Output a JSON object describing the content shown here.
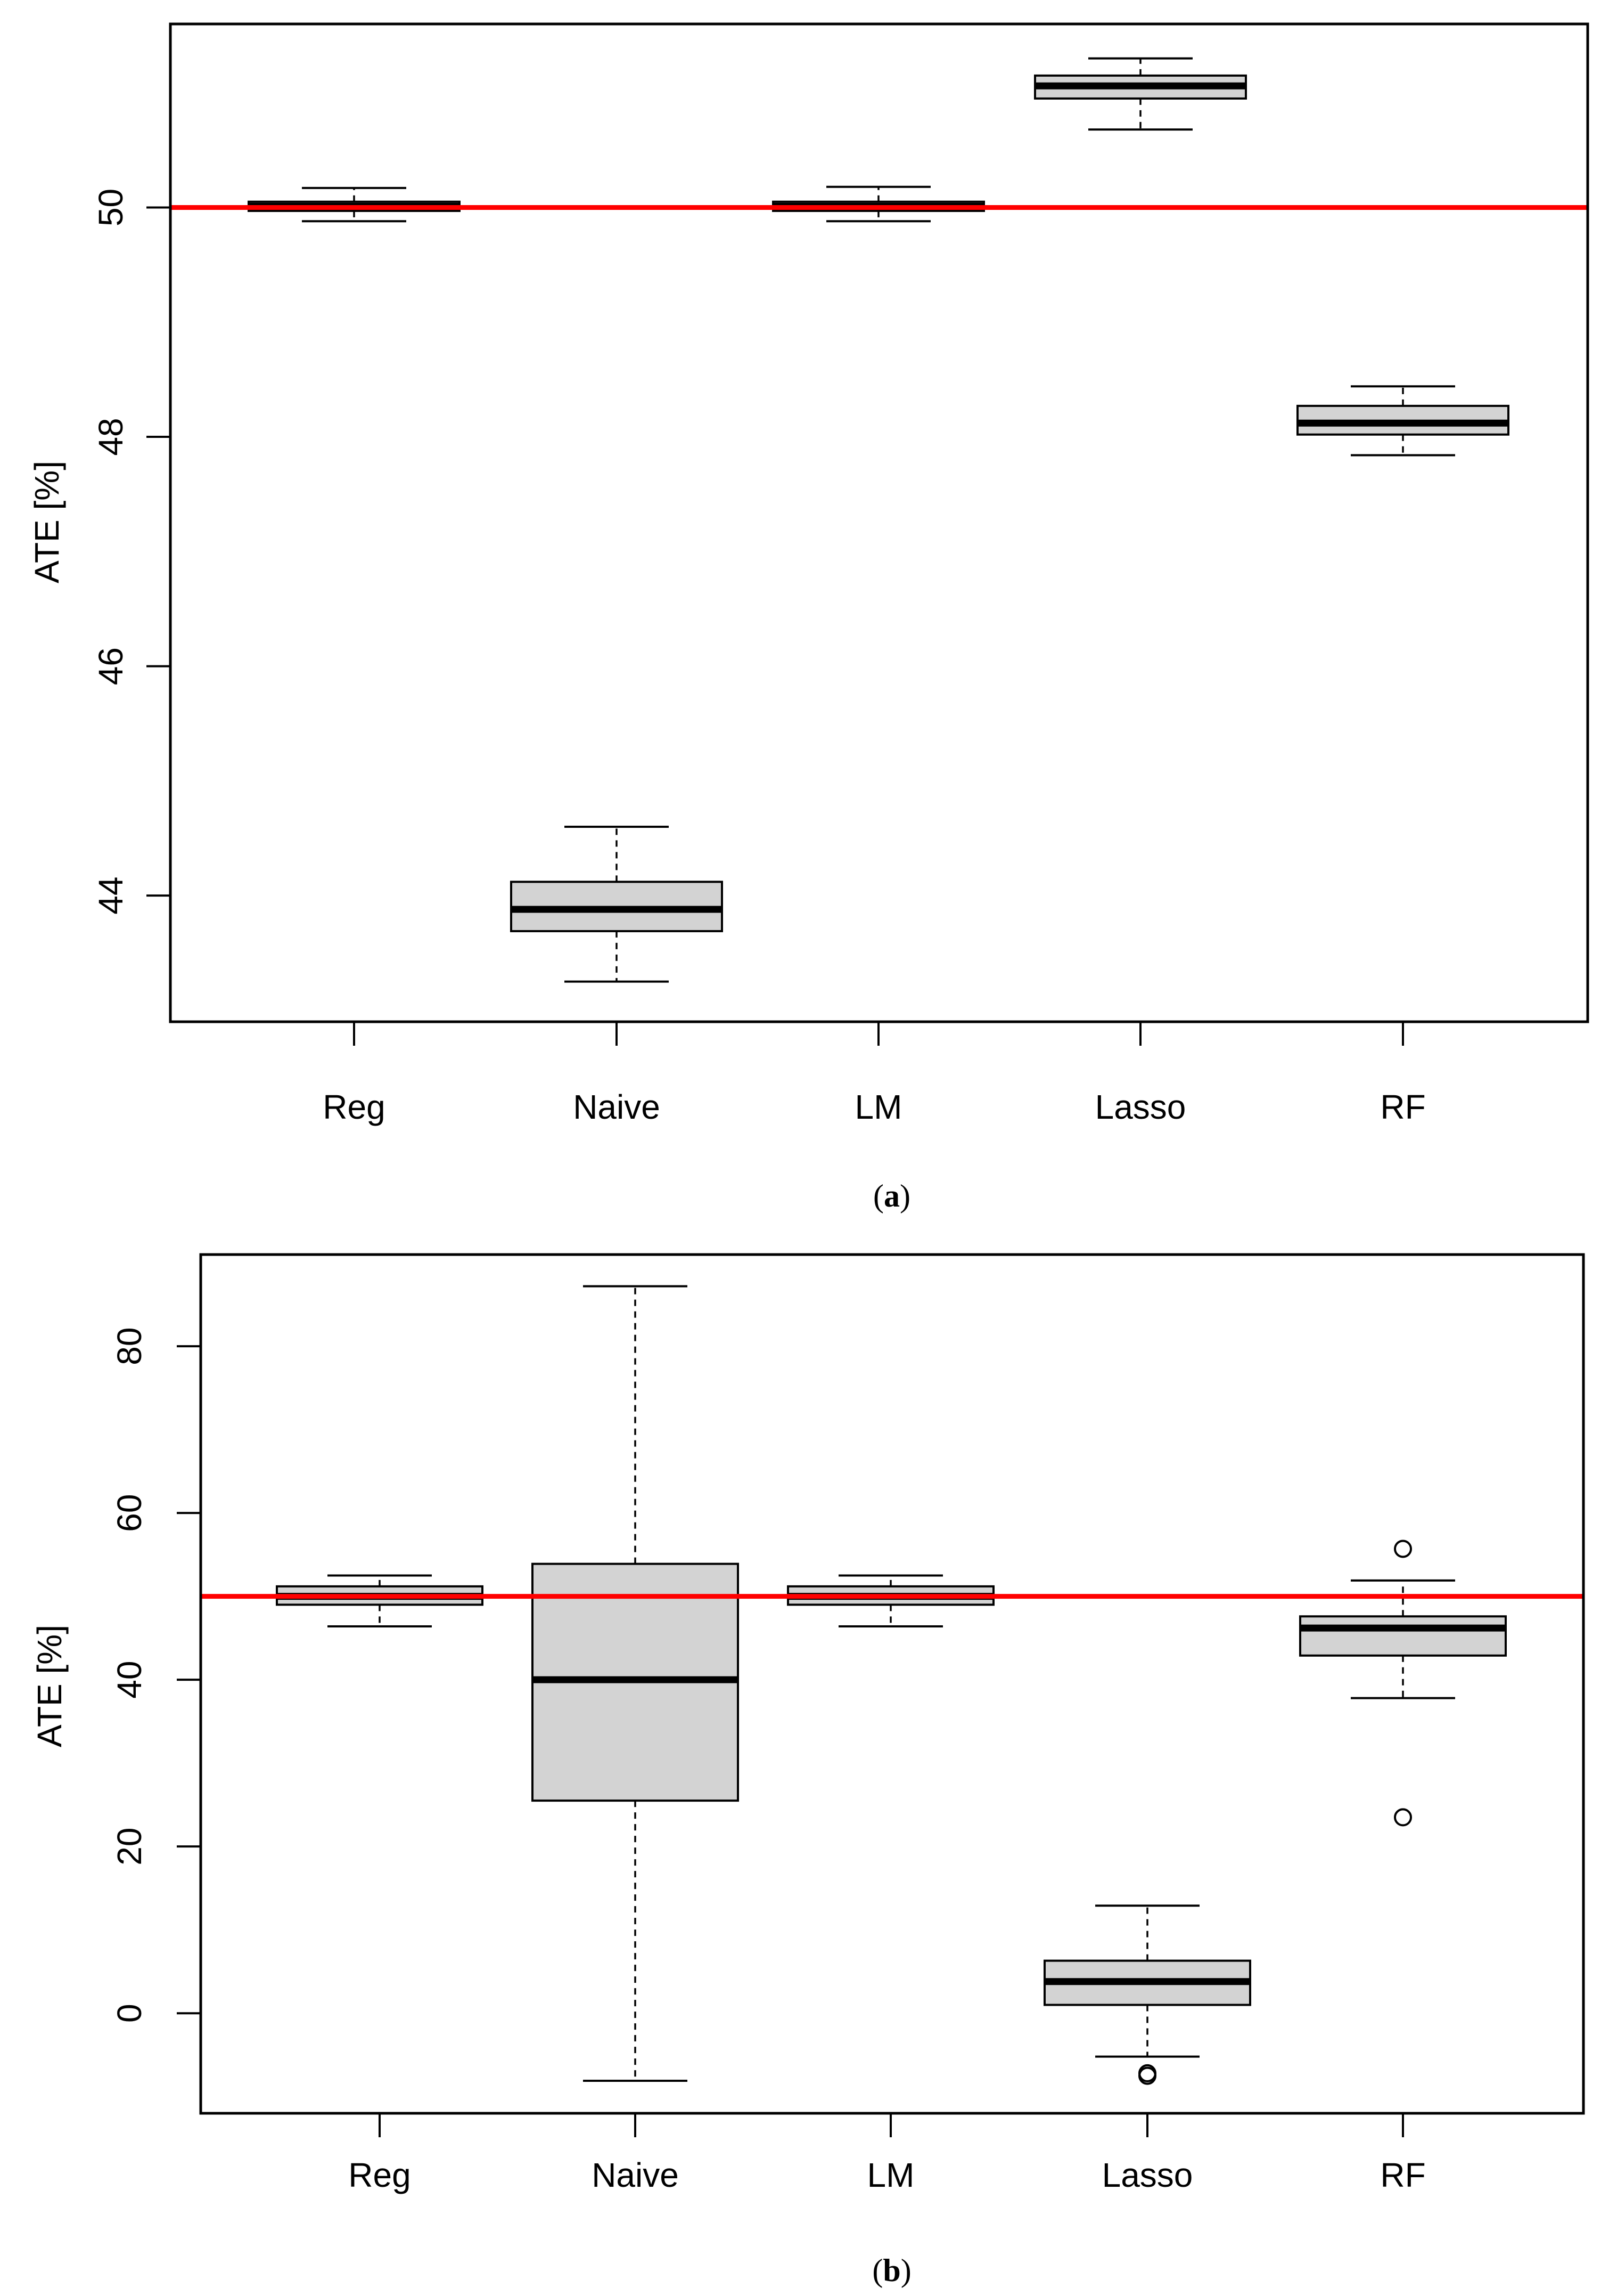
{
  "colors": {
    "box_fill": "#d3d3d3",
    "reference_line": "#ff0000",
    "stroke": "#000000"
  },
  "chart_data": [
    {
      "type": "boxplot",
      "panel": "a",
      "caption_letter": "a",
      "ylabel": "ATE [%]",
      "xlabel": "",
      "ylim": [
        42.9,
        51.6
      ],
      "yticks": [
        44,
        46,
        48,
        50
      ],
      "ytick_labels": [
        "44",
        "46",
        "48",
        "50"
      ],
      "reference_line": 50,
      "categories": [
        "Reg",
        "Naive",
        "LM",
        "Lasso",
        "RF"
      ],
      "boxes": [
        {
          "name": "Reg",
          "whisker_low": 49.88,
          "q1": 49.97,
          "median": 50.01,
          "q3": 50.05,
          "whisker_high": 50.17,
          "outliers": []
        },
        {
          "name": "Naive",
          "whisker_low": 43.25,
          "q1": 43.69,
          "median": 43.88,
          "q3": 44.12,
          "whisker_high": 44.6,
          "outliers": []
        },
        {
          "name": "LM",
          "whisker_low": 49.88,
          "q1": 49.97,
          "median": 50.01,
          "q3": 50.05,
          "whisker_high": 50.18,
          "outliers": []
        },
        {
          "name": "Lasso",
          "whisker_low": 50.68,
          "q1": 50.95,
          "median": 51.06,
          "q3": 51.15,
          "whisker_high": 51.3,
          "outliers": []
        },
        {
          "name": "RF",
          "whisker_low": 47.84,
          "q1": 48.02,
          "median": 48.12,
          "q3": 48.27,
          "whisker_high": 48.44,
          "outliers": []
        }
      ]
    },
    {
      "type": "boxplot",
      "panel": "b",
      "caption_letter": "b",
      "ylabel": "ATE [%]",
      "xlabel": "",
      "ylim": [
        -12,
        91
      ],
      "yticks": [
        0,
        20,
        40,
        60,
        80
      ],
      "ytick_labels": [
        "0",
        "20",
        "40",
        "60",
        "80"
      ],
      "reference_line": 50,
      "categories": [
        "Reg",
        "Naive",
        "LM",
        "Lasso",
        "RF"
      ],
      "boxes": [
        {
          "name": "Reg",
          "whisker_low": 46.4,
          "q1": 49.0,
          "median": 50.0,
          "q3": 51.2,
          "whisker_high": 52.5,
          "outliers": []
        },
        {
          "name": "Naive",
          "whisker_low": -8.1,
          "q1": 25.5,
          "median": 40.0,
          "q3": 53.9,
          "whisker_high": 87.2,
          "outliers": []
        },
        {
          "name": "LM",
          "whisker_low": 46.4,
          "q1": 49.0,
          "median": 50.0,
          "q3": 51.2,
          "whisker_high": 52.5,
          "outliers": []
        },
        {
          "name": "Lasso",
          "whisker_low": -5.2,
          "q1": 1.0,
          "median": 3.8,
          "q3": 6.3,
          "whisker_high": 12.9,
          "outliers": [
            -7.2,
            -7.5
          ]
        },
        {
          "name": "RF",
          "whisker_low": 37.8,
          "q1": 42.9,
          "median": 46.2,
          "q3": 47.6,
          "whisker_high": 51.9,
          "outliers": [
            55.7,
            23.5
          ]
        }
      ]
    }
  ]
}
